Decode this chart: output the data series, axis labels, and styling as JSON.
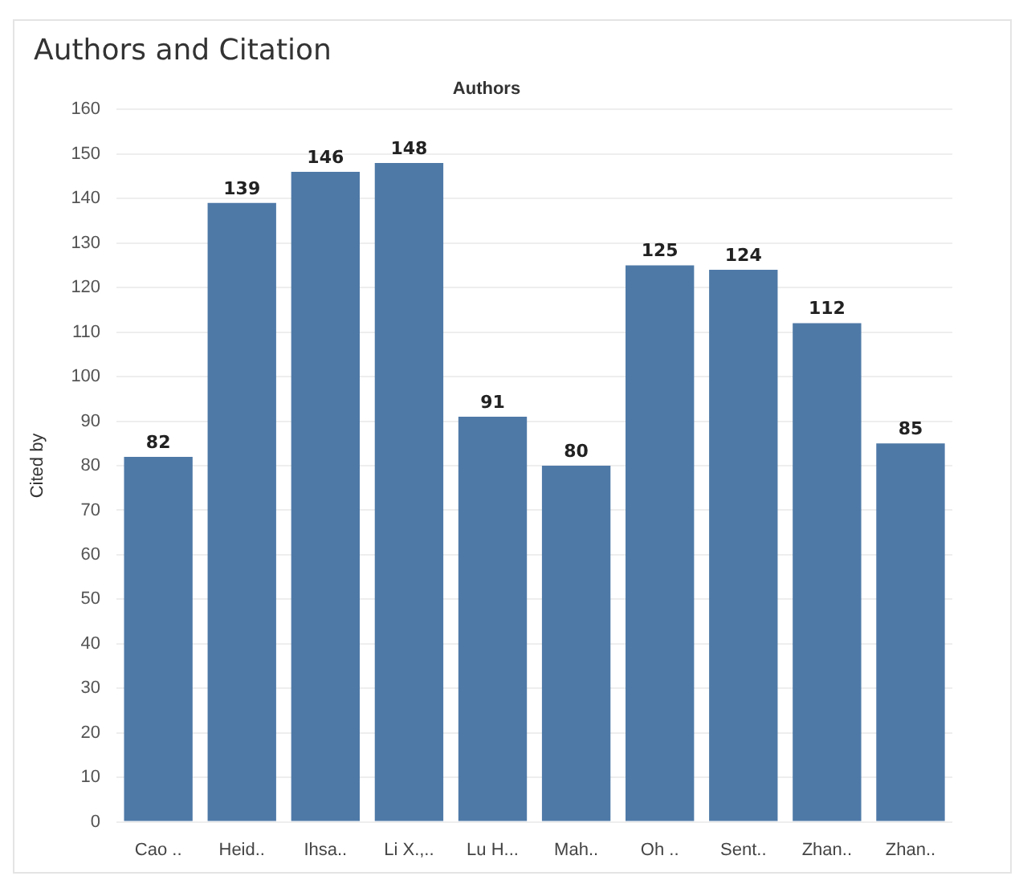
{
  "chart_data": {
    "type": "bar",
    "title": "Authors and Citation",
    "xlabel": "Authors",
    "ylabel": "Cited by",
    "categories": [
      "Cao ..",
      "Heid..",
      "Ihsa..",
      "Li X.,..",
      "Lu H...",
      "Mah..",
      "Oh ..",
      "Sent..",
      "Zhan..",
      "Zhan.."
    ],
    "values": [
      82,
      139,
      146,
      148,
      91,
      80,
      125,
      124,
      112,
      85
    ],
    "color": "#4e79a7",
    "ylim": [
      0,
      160
    ],
    "yticks": [
      0,
      10,
      20,
      30,
      40,
      50,
      60,
      70,
      80,
      90,
      100,
      110,
      120,
      130,
      140,
      150,
      160
    ],
    "grid": "y",
    "data_labels": true
  }
}
